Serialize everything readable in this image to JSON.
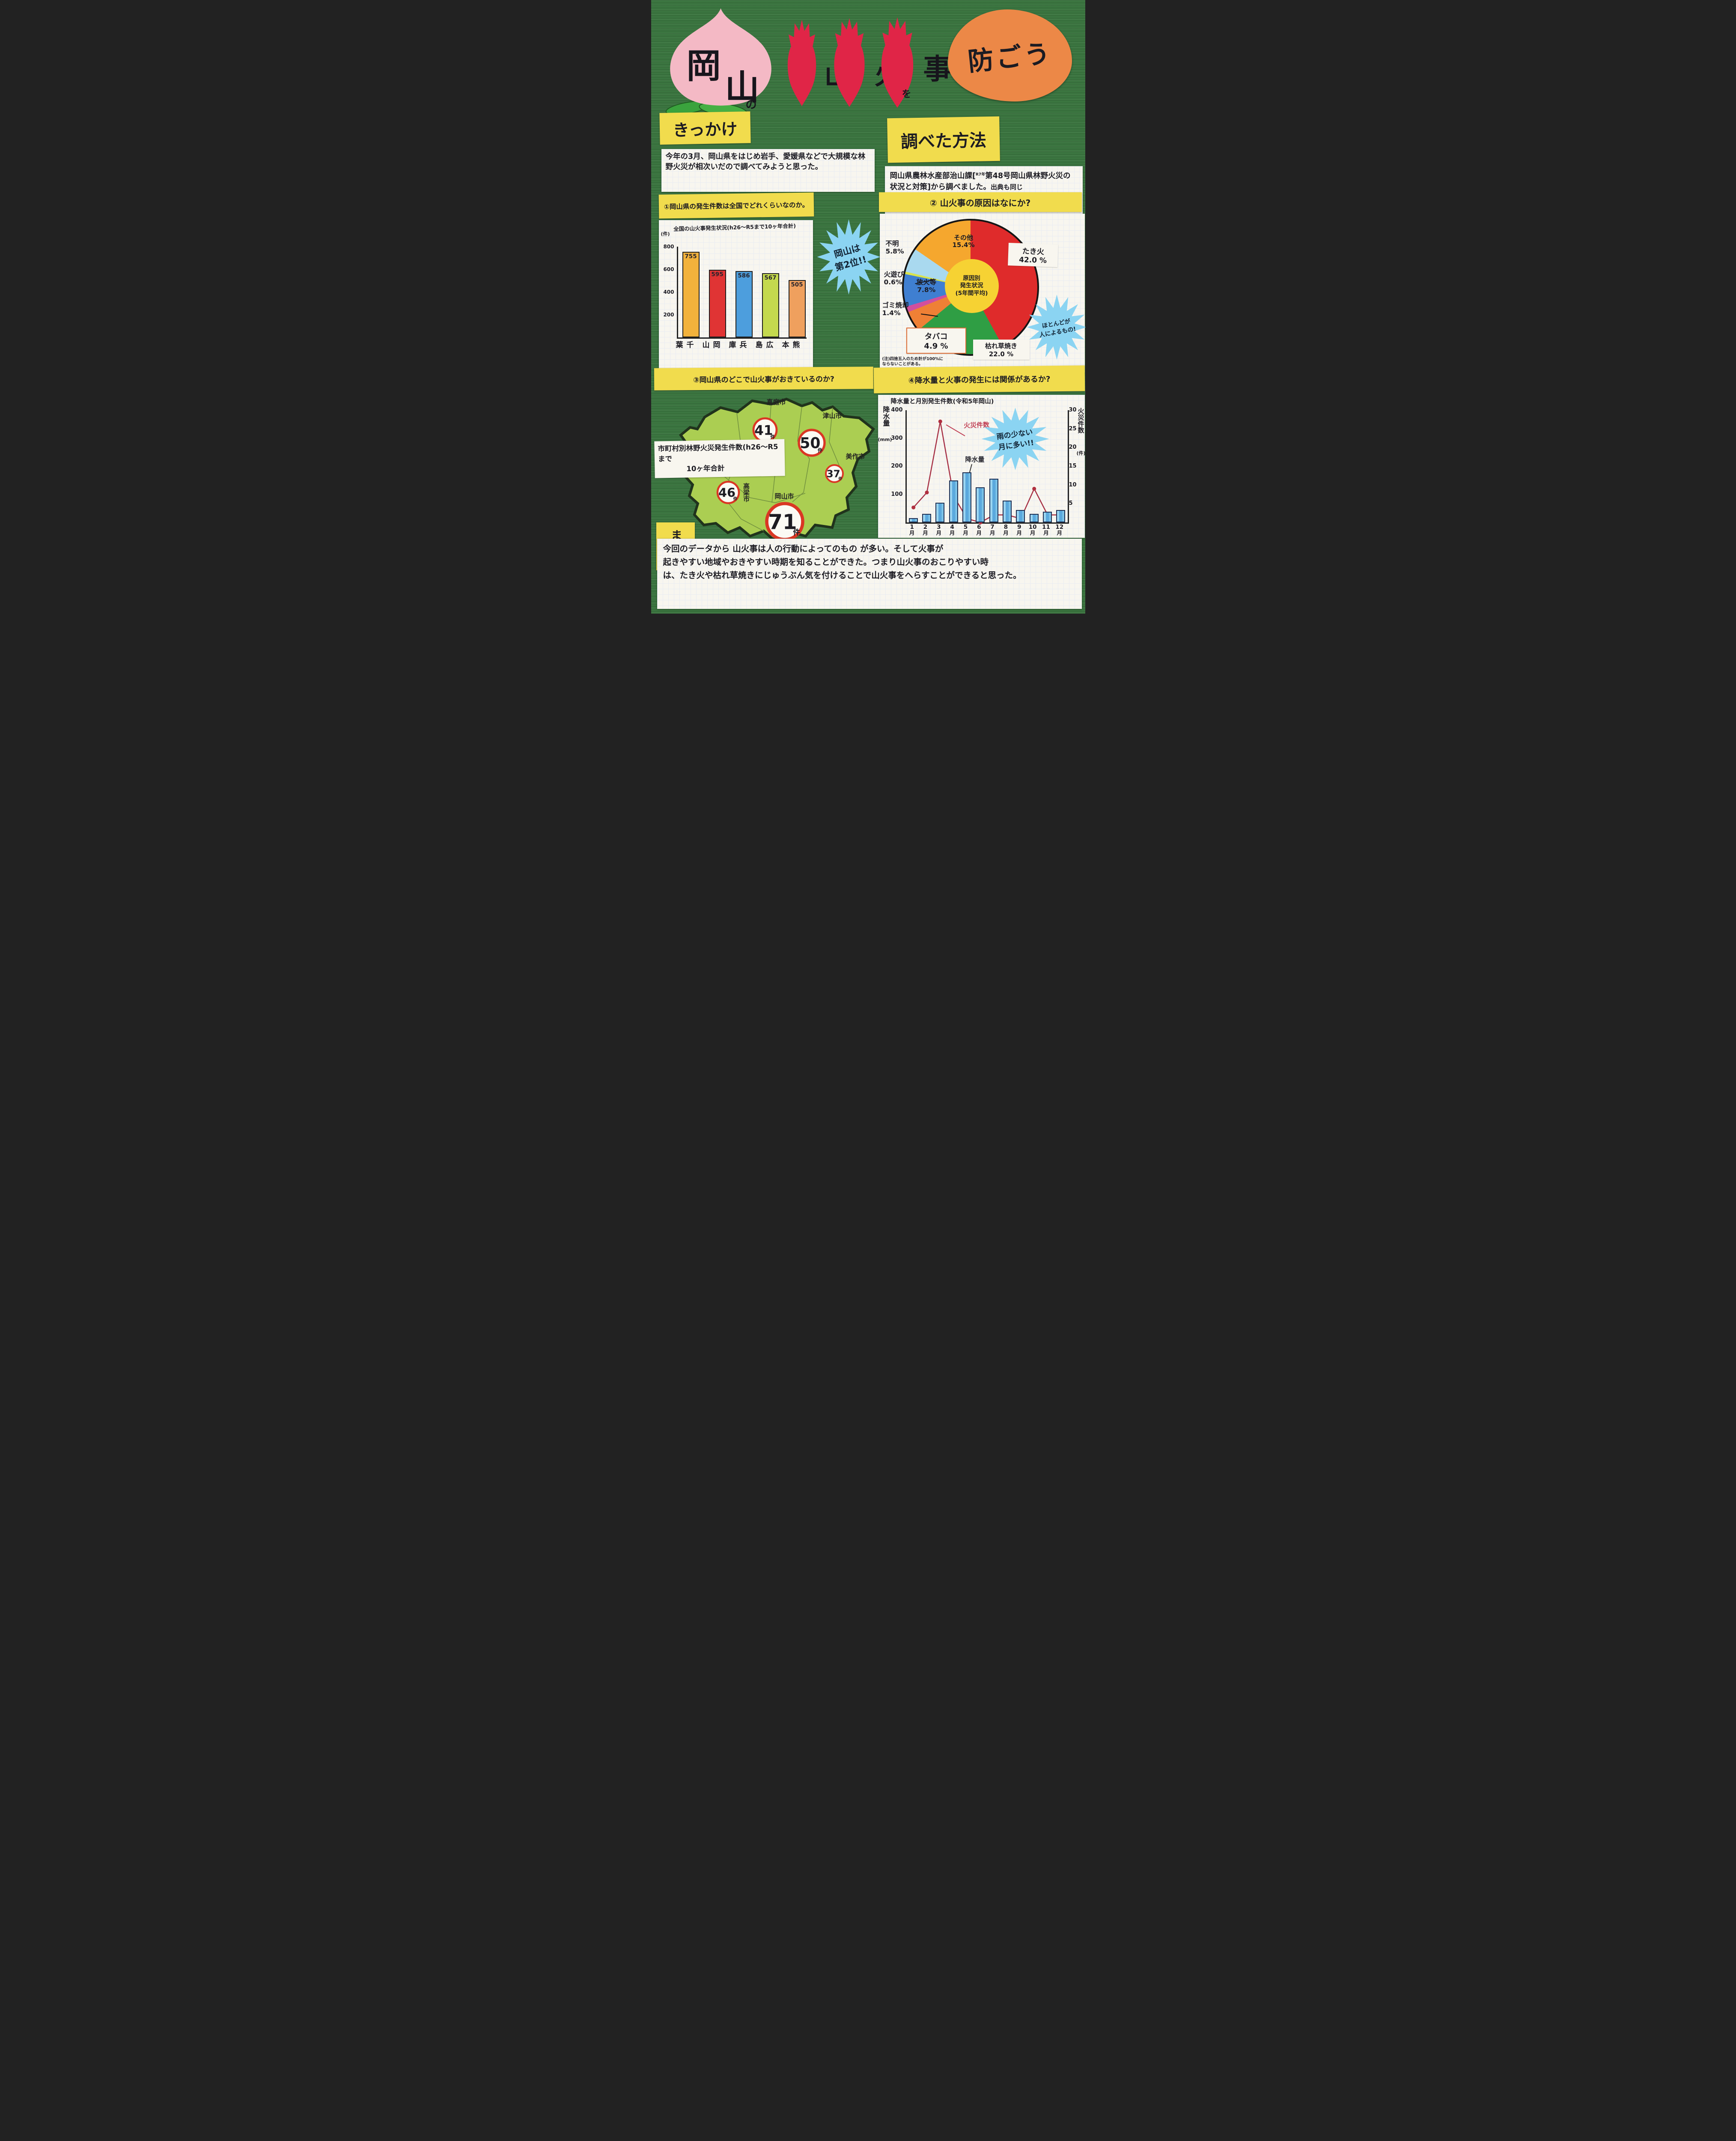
{
  "title": {
    "peach_chars": [
      "岡",
      "山"
    ],
    "peach_particle": "の",
    "flame_chars": [
      "山",
      "火",
      "事"
    ],
    "flame_particle": "を",
    "tail": "防ごう"
  },
  "kikkake": {
    "label": "きっかけ",
    "body": "今年の3月、岡山県をはじめ岩手、愛媛県などで大規模な林野火災が相次いだので調べてみようと思った。"
  },
  "method": {
    "label": "調べた方法",
    "part1": "岡山県農林水産部治山課[",
    "sup": "R7年",
    "part2": "第48号岡山県林野火災の状況と対策]から調べました。",
    "part3": "出典も同じ"
  },
  "q1": {
    "heading": "①岡山県の発生件数は全国でどれくらいなのか。",
    "burst": "岡山は\n第2位!!"
  },
  "q2": {
    "heading": "② 山火事の原因はなにか?",
    "burst": "ほとんどが\n人によるもの!",
    "note": "(注)四捨五入のため計が100%に\nならないことがある。"
  },
  "q3": {
    "heading": "③岡山県のどこで山火事がおきているのか?",
    "map_label": "市町村別林野火災発生件数(h26〜R5まで\n　　　　10ヶ年合計"
  },
  "q4": {
    "heading": "④降水量と火事の発生には関係があるか?",
    "burst": "雨の少ない\n月に多い!!"
  },
  "matome": {
    "label": "まとめ",
    "body": "今回のデータから 山火事は人の行動によってのもの が多い。そして火事が\n起きやすい地域やおきやすい時期を知ることができた。つまり山火事のおこりやすい時\nは、たき火や枯れ草焼きにじゅうぶん気を付けることで山火事をへらすことができると思った。"
  },
  "chart_data": [
    {
      "id": "national_bar",
      "type": "bar",
      "title": "全国の山火事発生状況(h26〜R5まで10ヶ年合計)",
      "unit": "(件)",
      "categories": [
        "千葉",
        "岡山",
        "兵庫",
        "広島",
        "熊本"
      ],
      "values": [
        755,
        595,
        586,
        567,
        505
      ],
      "colors": [
        "#f2b23c",
        "#e03434",
        "#4d9edd",
        "#c4d94e",
        "#efa05e"
      ],
      "yticks": [
        200,
        400,
        600,
        800
      ],
      "ylim": [
        0,
        800
      ],
      "grid": true,
      "annotation": "岡山は第2位!!"
    },
    {
      "id": "cause_pie",
      "type": "pie",
      "center_label": "原因別\n発生状況\n(5年間平均)",
      "slices": [
        {
          "label": "たき火",
          "value": 42.0,
          "pct": "42.0 %",
          "color": "#df2b2b"
        },
        {
          "label": "枯れ草焼き",
          "value": 22.0,
          "pct": "22.0 %",
          "color": "#2f9e44"
        },
        {
          "label": "タバコ",
          "value": 4.9,
          "pct": "4.9 %",
          "color": "#ef8035"
        },
        {
          "label": "ゴミ焼却",
          "value": 1.4,
          "pct": "1.4%",
          "color": "#d14f9e"
        },
        {
          "label": "放火等",
          "value": 7.8,
          "pct": "7.8%",
          "color": "#3f7fd1"
        },
        {
          "label": "火遊び",
          "value": 0.6,
          "pct": "0.6%",
          "color": "#d9e34b"
        },
        {
          "label": "不明",
          "value": 5.8,
          "pct": "5.8%",
          "color": "#a9d9ef"
        },
        {
          "label": "その他",
          "value": 15.4,
          "pct": "15.4%",
          "color": "#f5a72e"
        }
      ],
      "note": "(注)四捨五入のため計が100%にならないことがある。",
      "annotation": "ほとんどが人によるもの!"
    },
    {
      "id": "okayama_city_map",
      "type": "map-counts",
      "title": "市町村別林野火災発生件数(h26〜R5まで10ヶ年合計",
      "unit": "件",
      "cities": [
        {
          "name": "真庭市",
          "count": 41
        },
        {
          "name": "津山市",
          "count": 50
        },
        {
          "name": "美作市",
          "count": 37
        },
        {
          "name": "高梁市",
          "count": 46
        },
        {
          "name": "岡山市",
          "count": 71
        }
      ]
    },
    {
      "id": "rain_fire_combo",
      "type": "bar+line",
      "title": "降水量と月別発生件数(令和5年岡山)",
      "categories": [
        "1月",
        "2月",
        "3月",
        "4月",
        "5月",
        "6月",
        "7月",
        "8月",
        "9月",
        "10月",
        "11月",
        "12月"
      ],
      "series": [
        {
          "name": "降水量",
          "type": "bar",
          "unit": "mm",
          "values": [
            15,
            30,
            70,
            150,
            178,
            125,
            155,
            78,
            45,
            30,
            38,
            45
          ]
        },
        {
          "name": "火災件数",
          "type": "line",
          "unit": "件",
          "values": [
            4,
            8,
            27,
            7,
            1,
            0,
            2,
            2,
            1,
            9,
            2,
            2
          ]
        }
      ],
      "left_axis": {
        "label_main": "降水量",
        "label_unit": "(mm)",
        "ticks": [
          100,
          200,
          300,
          400
        ],
        "max": 400
      },
      "right_axis": {
        "label_main": "火災件数",
        "label_unit": "(件)",
        "ticks": [
          5,
          10,
          15,
          20,
          25,
          30
        ],
        "max": 30
      },
      "annotation": "雨の少ない月に多い!!"
    }
  ]
}
